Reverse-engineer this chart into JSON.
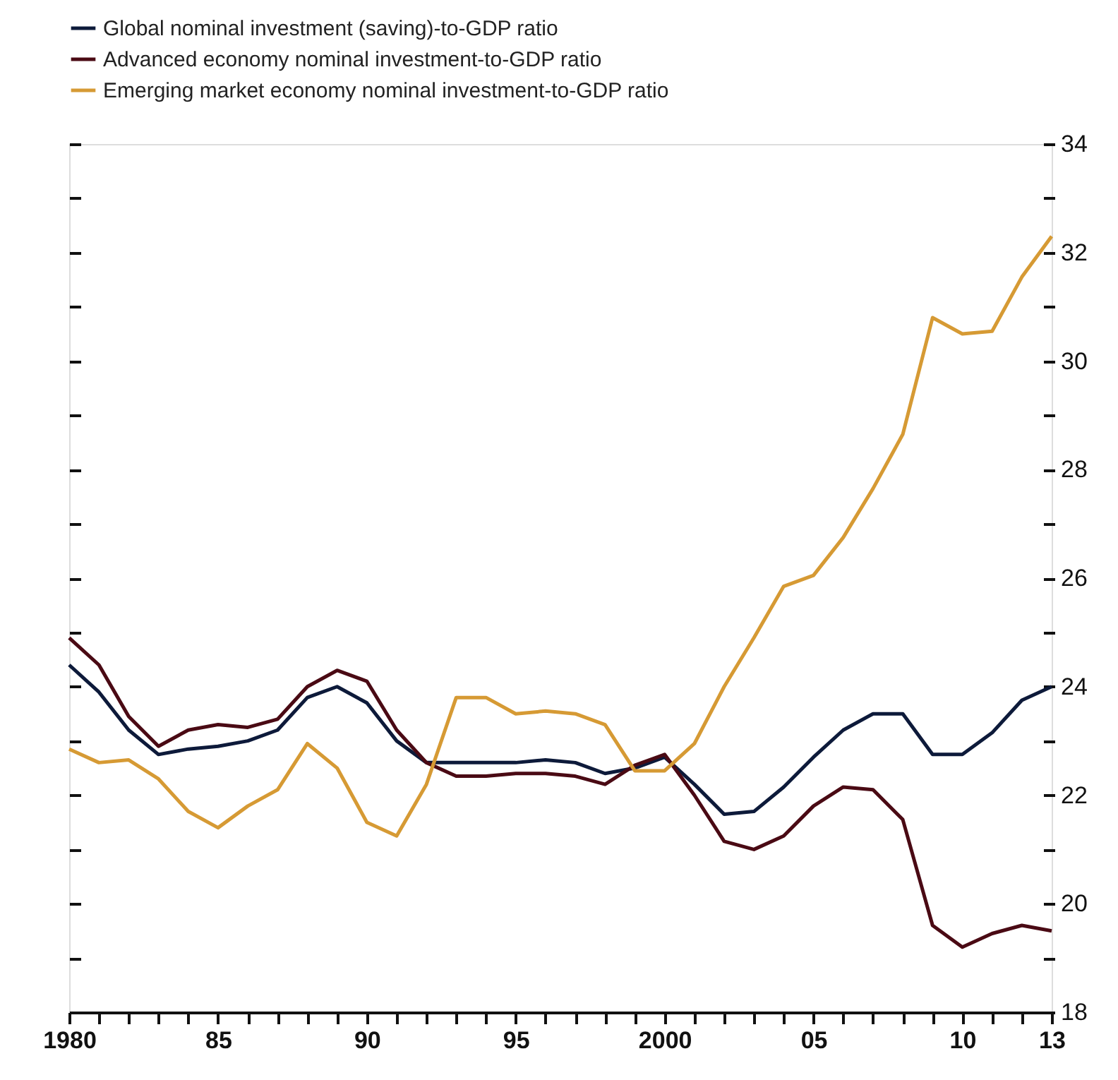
{
  "chart_data": {
    "type": "line",
    "x": [
      1980,
      1981,
      1982,
      1983,
      1984,
      1985,
      1986,
      1987,
      1988,
      1989,
      1990,
      1991,
      1992,
      1993,
      1994,
      1995,
      1996,
      1997,
      1998,
      1999,
      2000,
      2001,
      2002,
      2003,
      2004,
      2005,
      2006,
      2007,
      2008,
      2009,
      2010,
      2011,
      2012,
      2013
    ],
    "series": [
      {
        "name": "Global nominal investment (saving)-to-GDP ratio",
        "color": "#0d1a3a",
        "values": [
          24.4,
          23.9,
          23.2,
          22.75,
          22.85,
          22.9,
          23.0,
          23.2,
          23.8,
          24.0,
          23.7,
          23.0,
          22.6,
          22.6,
          22.6,
          22.6,
          22.65,
          22.6,
          22.4,
          22.5,
          22.7,
          22.2,
          21.65,
          21.7,
          22.15,
          22.7,
          23.2,
          23.5,
          23.5,
          22.75,
          22.75,
          23.15,
          23.75,
          24.0
        ]
      },
      {
        "name": "Advanced economy nominal investment-to-GDP ratio",
        "color": "#4a0a14",
        "values": [
          24.9,
          24.4,
          23.45,
          22.9,
          23.2,
          23.3,
          23.25,
          23.4,
          24.0,
          24.3,
          24.1,
          23.2,
          22.6,
          22.35,
          22.35,
          22.4,
          22.4,
          22.35,
          22.2,
          22.55,
          22.75,
          22.0,
          21.15,
          21.0,
          21.25,
          21.8,
          22.15,
          22.1,
          21.55,
          19.6,
          19.2,
          19.45,
          19.6,
          19.5
        ]
      },
      {
        "name": "Emerging market economy nominal investment-to-GDP ratio",
        "color": "#d69a34",
        "values": [
          22.85,
          22.6,
          22.65,
          22.3,
          21.7,
          21.4,
          21.8,
          22.1,
          22.95,
          22.5,
          21.5,
          21.25,
          22.2,
          23.8,
          23.8,
          23.5,
          23.55,
          23.5,
          23.3,
          22.45,
          22.45,
          22.95,
          24.0,
          24.9,
          25.85,
          26.05,
          26.75,
          27.65,
          28.65,
          30.8,
          30.5,
          30.55,
          31.55,
          32.3
        ]
      }
    ],
    "xlim": [
      1980,
      2013
    ],
    "xticks": [
      {
        "value": 1980,
        "label": "1980"
      },
      {
        "value": 1981,
        "label": null
      },
      {
        "value": 1982,
        "label": null
      },
      {
        "value": 1983,
        "label": null
      },
      {
        "value": 1984,
        "label": null
      },
      {
        "value": 1985,
        "label": "85"
      },
      {
        "value": 1986,
        "label": null
      },
      {
        "value": 1987,
        "label": null
      },
      {
        "value": 1988,
        "label": null
      },
      {
        "value": 1989,
        "label": null
      },
      {
        "value": 1990,
        "label": "90"
      },
      {
        "value": 1991,
        "label": null
      },
      {
        "value": 1992,
        "label": null
      },
      {
        "value": 1993,
        "label": null
      },
      {
        "value": 1994,
        "label": null
      },
      {
        "value": 1995,
        "label": "95"
      },
      {
        "value": 1996,
        "label": null
      },
      {
        "value": 1997,
        "label": null
      },
      {
        "value": 1998,
        "label": null
      },
      {
        "value": 1999,
        "label": null
      },
      {
        "value": 2000,
        "label": "2000"
      },
      {
        "value": 2001,
        "label": null
      },
      {
        "value": 2002,
        "label": null
      },
      {
        "value": 2003,
        "label": null
      },
      {
        "value": 2004,
        "label": null
      },
      {
        "value": 2005,
        "label": "05"
      },
      {
        "value": 2006,
        "label": null
      },
      {
        "value": 2007,
        "label": null
      },
      {
        "value": 2008,
        "label": null
      },
      {
        "value": 2009,
        "label": null
      },
      {
        "value": 2010,
        "label": "10"
      },
      {
        "value": 2011,
        "label": null
      },
      {
        "value": 2012,
        "label": null
      },
      {
        "value": 2013,
        "label": "13"
      }
    ],
    "ylim": [
      18,
      34
    ],
    "yticks": [
      18,
      {
        "value": 19,
        "label": null
      },
      20,
      {
        "value": 21,
        "label": null
      },
      22,
      {
        "value": 23,
        "label": null
      },
      24,
      {
        "value": 25,
        "label": null
      },
      26,
      {
        "value": 27,
        "label": null
      },
      28,
      {
        "value": 29,
        "label": null
      },
      30,
      {
        "value": 31,
        "label": null
      },
      32,
      {
        "value": 33,
        "label": null
      },
      34
    ],
    "legend": "top left",
    "grid": false,
    "line_style": "solid",
    "marker": "none"
  }
}
